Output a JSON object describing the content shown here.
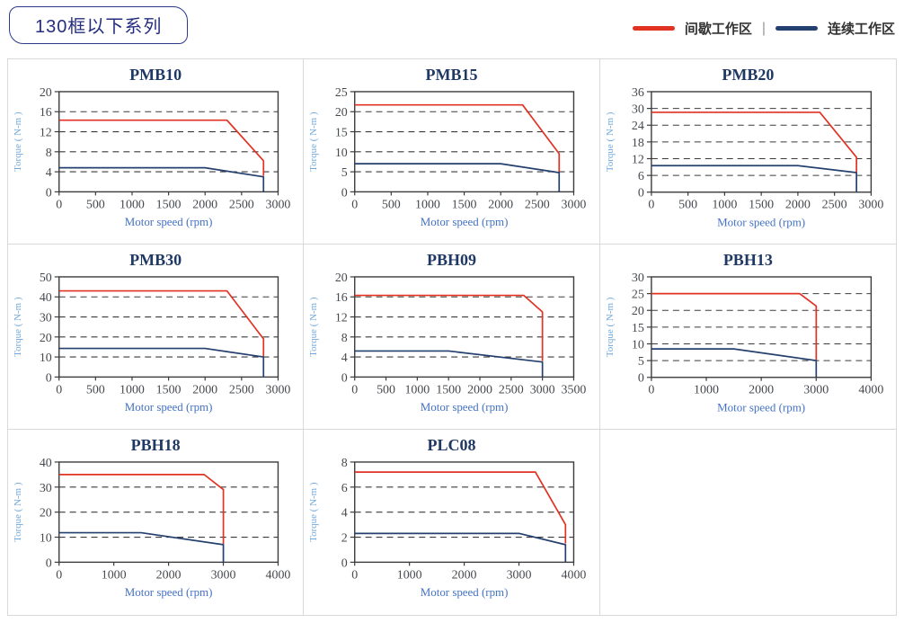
{
  "page": {
    "title_badge": "130框以下系列",
    "legend": {
      "intermittent_label": "间歇工作区",
      "continuous_label": "连续工作区",
      "separator": "|",
      "intermittent_color": "#e13222",
      "continuous_color": "#24406e"
    }
  },
  "chart_data": [
    {
      "type": "line",
      "title": "PMB10",
      "xlabel": "Motor speed (rpm)",
      "ylabel": "Torque ( N-m )",
      "xlim": [
        0,
        3000
      ],
      "ylim": [
        0,
        20
      ],
      "xticks": [
        0,
        500,
        1000,
        1500,
        2000,
        2500,
        3000
      ],
      "yticks": [
        0,
        4,
        8,
        12,
        16,
        20
      ],
      "grid": "dashed-horizontal",
      "series": [
        {
          "name": "间歇工作区",
          "color": "#e13222",
          "points": [
            [
              0,
              14.3
            ],
            [
              2300,
              14.3
            ],
            [
              2800,
              6.2
            ],
            [
              2800,
              3.2
            ]
          ]
        },
        {
          "name": "连续工作区",
          "color": "#24406e",
          "points": [
            [
              0,
              4.8
            ],
            [
              2000,
              4.8
            ],
            [
              2800,
              3.0
            ],
            [
              2800,
              0
            ]
          ]
        }
      ]
    },
    {
      "type": "line",
      "title": "PMB15",
      "xlabel": "Motor speed (rpm)",
      "ylabel": "Torque ( N-m )",
      "xlim": [
        0,
        3000
      ],
      "ylim": [
        0,
        25
      ],
      "xticks": [
        0,
        500,
        1000,
        1500,
        2000,
        2500,
        3000
      ],
      "yticks": [
        0,
        5,
        10,
        15,
        20,
        25
      ],
      "grid": "dashed-horizontal",
      "series": [
        {
          "name": "间歇工作区",
          "color": "#e13222",
          "points": [
            [
              0,
              21.7
            ],
            [
              2300,
              21.7
            ],
            [
              2800,
              9.5
            ],
            [
              2800,
              5.0
            ]
          ]
        },
        {
          "name": "连续工作区",
          "color": "#24406e",
          "points": [
            [
              0,
              7.0
            ],
            [
              2000,
              7.0
            ],
            [
              2800,
              4.8
            ],
            [
              2800,
              0
            ]
          ]
        }
      ]
    },
    {
      "type": "line",
      "title": "PMB20",
      "xlabel": "Motor speed (rpm)",
      "ylabel": "Torque ( N-m )",
      "xlim": [
        0,
        3000
      ],
      "ylim": [
        0,
        36
      ],
      "xticks": [
        0,
        500,
        1000,
        1500,
        2000,
        2500,
        3000
      ],
      "yticks": [
        0,
        6,
        12,
        18,
        24,
        30,
        36
      ],
      "grid": "dashed-horizontal",
      "series": [
        {
          "name": "间歇工作区",
          "color": "#e13222",
          "points": [
            [
              0,
              28.6
            ],
            [
              2300,
              28.6
            ],
            [
              2800,
              12.5
            ],
            [
              2800,
              7.2
            ]
          ]
        },
        {
          "name": "连续工作区",
          "color": "#24406e",
          "points": [
            [
              0,
              9.5
            ],
            [
              2000,
              9.5
            ],
            [
              2800,
              7.0
            ],
            [
              2800,
              0
            ]
          ]
        }
      ]
    },
    {
      "type": "line",
      "title": "PMB30",
      "xlabel": "Motor speed (rpm)",
      "ylabel": "Torque ( N-m )",
      "xlim": [
        0,
        3000
      ],
      "ylim": [
        0,
        50
      ],
      "xticks": [
        0,
        500,
        1000,
        1500,
        2000,
        2500,
        3000
      ],
      "yticks": [
        0,
        10,
        20,
        30,
        40,
        50
      ],
      "grid": "dashed-horizontal",
      "series": [
        {
          "name": "间歇工作区",
          "color": "#e13222",
          "points": [
            [
              0,
              43
            ],
            [
              2300,
              43
            ],
            [
              2800,
              19
            ],
            [
              2800,
              10.3
            ]
          ]
        },
        {
          "name": "连续工作区",
          "color": "#24406e",
          "points": [
            [
              0,
              14.3
            ],
            [
              2000,
              14.3
            ],
            [
              2800,
              10.0
            ],
            [
              2800,
              0
            ]
          ]
        }
      ]
    },
    {
      "type": "line",
      "title": "PBH09",
      "xlabel": "Motor speed (rpm)",
      "ylabel": "Torque ( N-m )",
      "xlim": [
        0,
        3500
      ],
      "ylim": [
        0,
        20
      ],
      "xticks": [
        0,
        500,
        1000,
        1500,
        2000,
        2500,
        3000,
        3500
      ],
      "yticks": [
        0,
        4,
        8,
        12,
        16,
        20
      ],
      "grid": "dashed-horizontal",
      "series": [
        {
          "name": "间歇工作区",
          "color": "#e13222",
          "points": [
            [
              0,
              16.3
            ],
            [
              2700,
              16.3
            ],
            [
              3000,
              13.0
            ],
            [
              3000,
              3.2
            ]
          ]
        },
        {
          "name": "连续工作区",
          "color": "#24406e",
          "points": [
            [
              0,
              5.2
            ],
            [
              1500,
              5.2
            ],
            [
              3000,
              3.0
            ],
            [
              3000,
              0
            ]
          ]
        }
      ]
    },
    {
      "type": "line",
      "title": "PBH13",
      "xlabel": "Motor speed (rpm)",
      "ylabel": "Torque ( N-m )",
      "xlim": [
        0,
        4000
      ],
      "ylim": [
        0,
        30
      ],
      "xticks": [
        0,
        1000,
        2000,
        3000,
        4000
      ],
      "yticks": [
        0,
        5,
        10,
        15,
        20,
        25,
        30
      ],
      "grid": "dashed-horizontal",
      "series": [
        {
          "name": "间歇工作区",
          "color": "#e13222",
          "points": [
            [
              0,
              25
            ],
            [
              2700,
              25
            ],
            [
              3000,
              21.3
            ],
            [
              3000,
              5.2
            ]
          ]
        },
        {
          "name": "连续工作区",
          "color": "#24406e",
          "points": [
            [
              0,
              8.5
            ],
            [
              1500,
              8.5
            ],
            [
              3000,
              5.0
            ],
            [
              3000,
              0
            ]
          ]
        }
      ]
    },
    {
      "type": "line",
      "title": "PBH18",
      "xlabel": "Motor speed (rpm)",
      "ylabel": "Torque ( N-m )",
      "xlim": [
        0,
        4000
      ],
      "ylim": [
        0,
        40
      ],
      "xticks": [
        0,
        1000,
        2000,
        3000,
        4000
      ],
      "yticks": [
        0,
        10,
        20,
        30,
        40
      ],
      "grid": "dashed-horizontal",
      "series": [
        {
          "name": "间歇工作区",
          "color": "#e13222",
          "points": [
            [
              0,
              35
            ],
            [
              2650,
              35
            ],
            [
              3000,
              29
            ],
            [
              3000,
              7.2
            ]
          ]
        },
        {
          "name": "连续工作区",
          "color": "#24406e",
          "points": [
            [
              0,
              11.8
            ],
            [
              1500,
              11.8
            ],
            [
              3000,
              7.0
            ],
            [
              3000,
              0
            ]
          ]
        }
      ]
    },
    {
      "type": "line",
      "title": "PLC08",
      "xlabel": "Motor speed (rpm)",
      "ylabel": "Torque ( N-m )",
      "xlim": [
        0,
        4000
      ],
      "ylim": [
        0,
        8
      ],
      "xticks": [
        0,
        1000,
        2000,
        3000,
        4000
      ],
      "yticks": [
        0,
        2,
        4,
        6,
        8
      ],
      "grid": "dashed-horizontal",
      "series": [
        {
          "name": "间歇工作区",
          "color": "#e13222",
          "points": [
            [
              0,
              7.2
            ],
            [
              3300,
              7.2
            ],
            [
              3850,
              3.0
            ],
            [
              3850,
              1.5
            ]
          ]
        },
        {
          "name": "连续工作区",
          "color": "#24406e",
          "points": [
            [
              0,
              2.3
            ],
            [
              3000,
              2.3
            ],
            [
              3850,
              1.4
            ],
            [
              3850,
              0
            ]
          ]
        }
      ]
    }
  ]
}
